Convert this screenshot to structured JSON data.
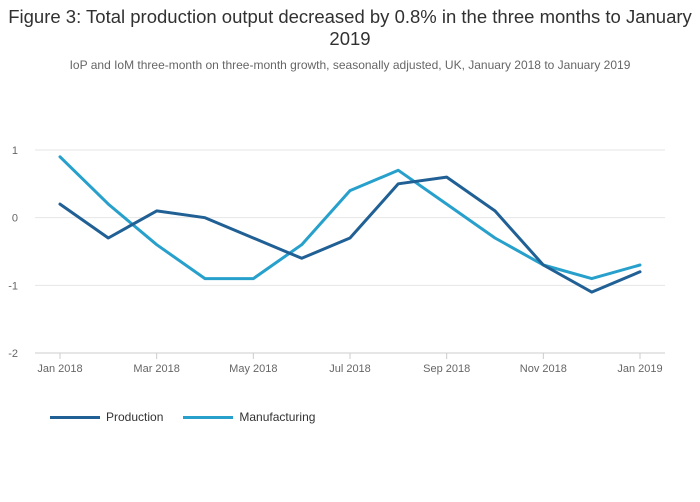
{
  "title": "Figure 3: Total production output decreased by 0.8% in the three months to January 2019",
  "subtitle": "IoP and IoM three-month on three-month growth, seasonally adjusted, UK, January 2018 to January 2019",
  "colors": {
    "production": "#206095",
    "manufacturing": "#27a0cc",
    "grid": "#e6e6e6",
    "axis": "#cccccc",
    "tick_text": "#666666"
  },
  "legend": {
    "production_label": "Production",
    "manufacturing_label": "Manufacturing"
  },
  "chart_data": {
    "type": "line",
    "title": "Figure 3: Total production output decreased by 0.8% in the three months to January 2019",
    "subtitle": "IoP and IoM three-month on three-month growth, seasonally adjusted, UK, January 2018 to January 2019",
    "xlabel": "",
    "ylabel": "",
    "categories": [
      "Jan 2018",
      "Feb 2018",
      "Mar 2018",
      "Apr 2018",
      "May 2018",
      "Jun 2018",
      "Jul 2018",
      "Aug 2018",
      "Sep 2018",
      "Oct 2018",
      "Nov 2018",
      "Dec 2018",
      "Jan 2019"
    ],
    "x_tick_labels": [
      "Jan 2018",
      "Mar 2018",
      "May 2018",
      "Jul 2018",
      "Sep 2018",
      "Nov 2018",
      "Jan 2019"
    ],
    "y_ticks": [
      1,
      0,
      -1,
      -2
    ],
    "ylim": [
      -2,
      1
    ],
    "grid": true,
    "legend_position": "bottom-left",
    "series": [
      {
        "name": "Production",
        "values": [
          0.2,
          -0.3,
          0.1,
          0.0,
          -0.3,
          -0.6,
          -0.3,
          0.5,
          0.6,
          0.1,
          -0.7,
          -1.1,
          -0.8
        ]
      },
      {
        "name": "Manufacturing",
        "values": [
          0.9,
          0.2,
          -0.4,
          -0.9,
          -0.9,
          -0.4,
          0.4,
          0.7,
          0.2,
          -0.3,
          -0.7,
          -0.9,
          -0.7
        ]
      }
    ]
  }
}
